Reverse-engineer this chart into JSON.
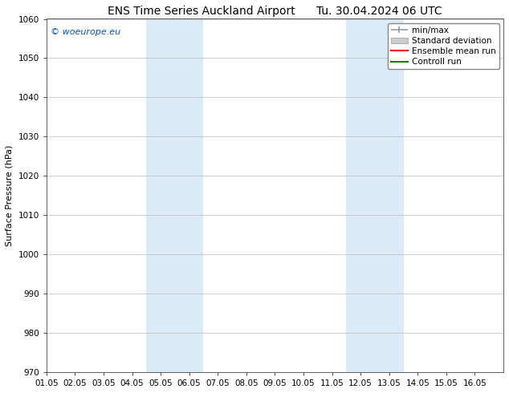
{
  "title_left": "ENS Time Series Auckland Airport",
  "title_right": "Tu. 30.04.2024 06 UTC",
  "ylabel": "Surface Pressure (hPa)",
  "xlim": [
    0,
    16
  ],
  "ylim": [
    970,
    1060
  ],
  "yticks": [
    970,
    980,
    990,
    1000,
    1010,
    1020,
    1030,
    1040,
    1050,
    1060
  ],
  "xtick_labels": [
    "01.05",
    "02.05",
    "03.05",
    "04.05",
    "05.05",
    "06.05",
    "07.05",
    "08.05",
    "09.05",
    "10.05",
    "11.05",
    "12.05",
    "13.05",
    "14.05",
    "15.05",
    "16.05"
  ],
  "xtick_positions": [
    0,
    1,
    2,
    3,
    4,
    5,
    6,
    7,
    8,
    9,
    10,
    11,
    12,
    13,
    14,
    15
  ],
  "shaded_regions": [
    {
      "xmin": 3.5,
      "xmax": 5.5,
      "color": "#daeaf7"
    },
    {
      "xmin": 10.5,
      "xmax": 12.5,
      "color": "#daeaf7"
    }
  ],
  "watermark_text": "© woeurope.eu",
  "watermark_color": "#0055cc",
  "legend_entries": [
    {
      "label": "min/max",
      "color": "#999999",
      "style": "minmax"
    },
    {
      "label": "Standard deviation",
      "color": "#cccccc",
      "style": "stdev"
    },
    {
      "label": "Ensemble mean run",
      "color": "#ff0000",
      "style": "line"
    },
    {
      "label": "Controll run",
      "color": "#008000",
      "style": "line"
    }
  ],
  "background_color": "#ffffff",
  "plot_bg_color": "#ffffff",
  "grid_color": "#bbbbbb",
  "title_fontsize": 10,
  "ylabel_fontsize": 8,
  "watermark_fontsize": 8,
  "tick_fontsize": 7.5,
  "legend_fontsize": 7.5
}
